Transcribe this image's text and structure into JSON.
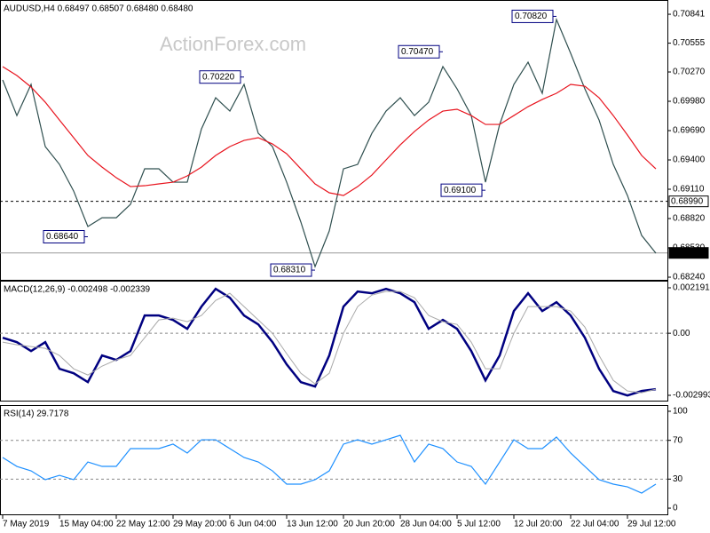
{
  "chart_data": [
    {
      "type": "line",
      "title": "AUDUSD,H4  0.68497 0.68507 0.68480 0.68480",
      "watermark": "ActionForex.com",
      "categories": [
        "7 May 2019",
        null,
        null,
        null,
        "15 May 04:00",
        null,
        null,
        null,
        "22 May 12:00",
        null,
        null,
        null,
        "29 May 20:00",
        null,
        null,
        null,
        "6 Jun 04:00",
        null,
        null,
        null,
        "13 Jun 12:00",
        null,
        null,
        null,
        "20 Jun 20:00",
        null,
        null,
        null,
        "28 Jun 04:00",
        null,
        null,
        null,
        "5 Jul 12:00",
        null,
        null,
        null,
        "12 Jul 20:00",
        null,
        null,
        null,
        "22 Jul 04:00",
        null,
        null,
        null,
        "29 Jul 12:00",
        null,
        null
      ],
      "series": [
        {
          "color": "#2f4f4f",
          "values": [
            0.70191,
            0.69839,
            0.70147,
            0.69532,
            0.69356,
            0.69092,
            0.68741,
            0.68828,
            0.68828,
            0.6896,
            0.69312,
            0.69312,
            0.6918,
            0.6918,
            0.69707,
            0.70015,
            0.69883,
            0.70147,
            0.69663,
            0.69532,
            0.6918,
            0.68785,
            0.68345,
            0.68697,
            0.69312,
            0.69356,
            0.69663,
            0.69883,
            0.70015,
            0.69839,
            0.69971,
            0.70323,
            0.70103,
            0.69839,
            0.6918,
            0.69751,
            0.70147,
            0.70367,
            0.70059,
            0.70789,
            0.70455,
            0.70103,
            0.69795,
            0.69356,
            0.69048,
            0.68653,
            0.68477
          ]
        },
        {
          "color": "#e8141e",
          "values": [
            0.70323,
            0.70235,
            0.70121,
            0.69971,
            0.69795,
            0.6962,
            0.69444,
            0.69329,
            0.69224,
            0.69136,
            0.69145,
            0.69163,
            0.6918,
            0.69242,
            0.69329,
            0.69444,
            0.69532,
            0.69593,
            0.6962,
            0.69558,
            0.69461,
            0.69312,
            0.69163,
            0.69075,
            0.69048,
            0.69136,
            0.6925,
            0.694,
            0.69549,
            0.69681,
            0.69795,
            0.69883,
            0.69901,
            0.69839,
            0.69751,
            0.69751,
            0.69839,
            0.69927,
            0.69998,
            0.70059,
            0.70147,
            0.70129,
            0.70015,
            0.69839,
            0.69646,
            0.69444,
            0.69312
          ]
        }
      ],
      "ylim": [
        0.68205,
        0.70982
      ],
      "yticks": [
        0.70841,
        0.70555,
        {
          "value": 0.7027,
          "label": "0.70270"
        },
        {
          "value": 0.6998,
          "label": "0.69980"
        },
        {
          "value": 0.6969,
          "label": "0.69690"
        },
        {
          "value": 0.694,
          "label": "0.69400"
        },
        {
          "value": 0.6911,
          "label": "0.69110"
        },
        {
          "value": 0.6882,
          "label": "0.68820"
        },
        {
          "value": 0.6853,
          "label": "0.68530"
        },
        {
          "value": 0.6824,
          "label": "0.68240"
        }
      ],
      "price_lines": [
        {
          "value": 0.6899,
          "label": "0.68990",
          "style": "dashed"
        },
        {
          "value": 0.6848,
          "label": "0.68480",
          "style": "solid"
        }
      ],
      "annotations": [
        {
          "label": "0.70820",
          "value": 0.7082,
          "x": 39
        },
        {
          "label": "0.70470",
          "value": 0.7047,
          "x": 31
        },
        {
          "label": "0.70220",
          "value": 0.7022,
          "x": 17
        },
        {
          "label": "0.69100",
          "value": 0.691,
          "x": 34
        },
        {
          "label": "0.68640",
          "value": 0.6864,
          "x": 6
        },
        {
          "label": "0.68310",
          "value": 0.6831,
          "x": 22
        }
      ]
    },
    {
      "type": "line",
      "title": "MACD(12,26,9) -0.002498 -0.002339",
      "series": [
        {
          "color": "#000080",
          "values": [
            -0.000214,
            -0.000428,
            -0.000857,
            -0.000428,
            -0.001714,
            -0.001928,
            -0.002356,
            -0.001071,
            -0.001285,
            -0.000857,
            0.000857,
            0.000857,
            0.000643,
            0.000214,
            0.001285,
            0.002142,
            0.001714,
            0.000857,
            0.000428,
            -0.000428,
            -0.001499,
            -0.002356,
            -0.00257,
            -0.001071,
            0.001285,
            0.002013,
            0.001928,
            0.002142,
            0.001928,
            0.001499,
            0.000214,
            0.000643,
            0.000214,
            -0.000857,
            -0.002271,
            -0.001071,
            0.001071,
            0.001928,
            0.001071,
            0.001499,
            0.000857,
            -0.000214,
            -0.001714,
            -0.002785,
            -0.002999,
            -0.002785,
            -0.002699
          ]
        },
        {
          "color": "#a9a9a9",
          "values": [
            -0.000428,
            -0.000557,
            -0.000643,
            -0.000728,
            -0.001071,
            -0.001714,
            -0.002013,
            -0.001585,
            -0.001285,
            -0.001071,
            -0.000214,
            0.000643,
            0.000728,
            0.000557,
            0.000857,
            0.001585,
            0.001928,
            0.001285,
            0.000643,
            0,
            -0.000985,
            -0.001928,
            -0.002442,
            -0.001928,
            0,
            0.001285,
            0.001842,
            0.002013,
            0.002013,
            0.001714,
            0.000857,
            0.000557,
            0.000428,
            -0.000428,
            -0.001714,
            -0.001714,
            0,
            0.001285,
            0.001285,
            0.001285,
            0.001071,
            0.0003,
            -0.001071,
            -0.002271,
            -0.002785,
            -0.00287,
            -0.002699
          ]
        }
      ],
      "ylim": [
        -0.003293,
        0.002534
      ],
      "yticks": [
        0.002191,
        {
          "value": 0,
          "label": "0.00"
        },
        -0.002993
      ],
      "dashed_levels": [
        0
      ]
    },
    {
      "type": "line",
      "title": "RSI(14) 29.7178",
      "series": [
        {
          "color": "#1e90ff",
          "values": [
            52.3,
            43.1,
            38.5,
            29.4,
            33.9,
            29.4,
            47.7,
            43.1,
            43.1,
            61.5,
            61.5,
            61.5,
            66.1,
            56.9,
            70.6,
            70.6,
            61.5,
            52.3,
            47.7,
            38.5,
            24.8,
            24.8,
            29.4,
            38.5,
            66.1,
            70.6,
            66.1,
            70.6,
            75.2,
            47.7,
            66.1,
            61.5,
            47.7,
            43.1,
            24.8,
            47.7,
            70.6,
            61.5,
            61.5,
            73.4,
            56.9,
            43.1,
            29.4,
            24.8,
            22.0,
            15.6,
            24.8
          ]
        }
      ],
      "ylim": [
        -7.3,
        106.4
      ],
      "yticks": [
        100,
        70,
        30,
        0
      ],
      "dashed_levels": [
        30,
        70
      ]
    }
  ]
}
